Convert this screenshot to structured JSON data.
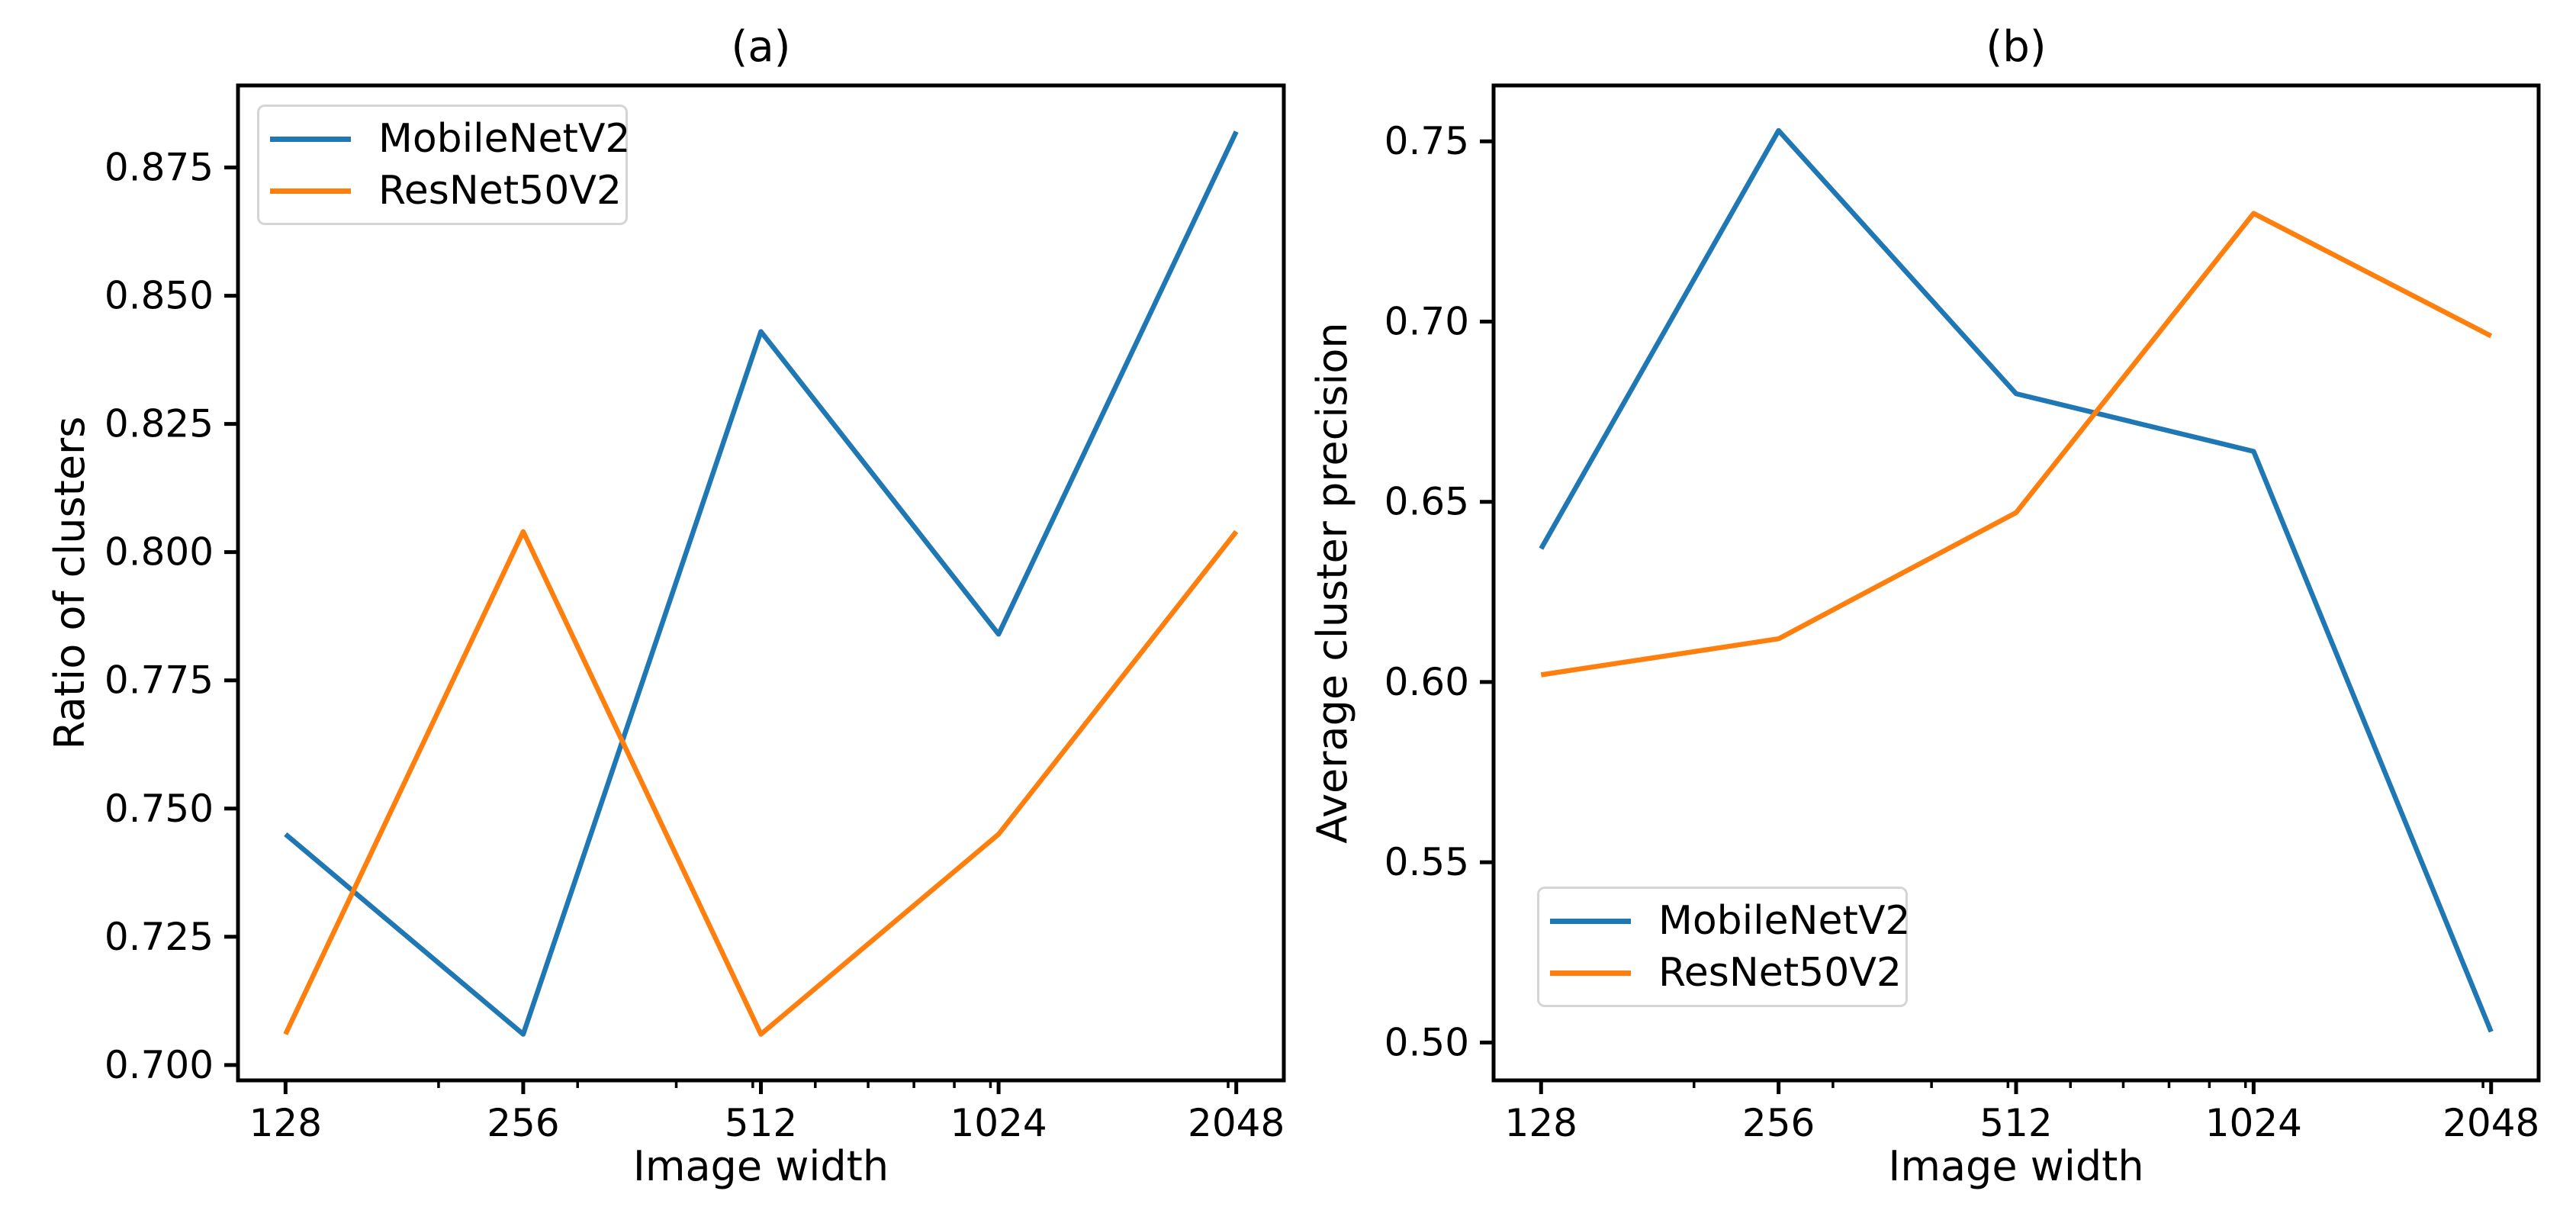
{
  "figure": {
    "background_color": "#ffffff",
    "text_color": "#000000"
  },
  "chart_data": [
    {
      "type": "line",
      "id": "a",
      "title": "(a)",
      "xlabel": "Image width",
      "ylabel": "Ratio of clusters",
      "x_scale": "log2",
      "x": [
        128,
        256,
        512,
        1024,
        2048
      ],
      "x_tick_labels": [
        "128",
        "256",
        "512",
        "1024",
        "2048"
      ],
      "xticks_minor": [
        200,
        300,
        400,
        500,
        600,
        700,
        800,
        900,
        1000,
        2000
      ],
      "xlim_log2": [
        6.8,
        11.2
      ],
      "ylim": [
        0.697,
        0.891
      ],
      "yticks": [
        0.7,
        0.725,
        0.75,
        0.775,
        0.8,
        0.825,
        0.85,
        0.875
      ],
      "y_tick_labels": [
        "0.700",
        "0.725",
        "0.750",
        "0.775",
        "0.800",
        "0.825",
        "0.850",
        "0.875"
      ],
      "grid": false,
      "legend_position": "upper left",
      "series": [
        {
          "name": "MobileNetV2",
          "color": "#1f77b4",
          "values": [
            0.745,
            0.706,
            0.843,
            0.784,
            0.882
          ]
        },
        {
          "name": "ResNet50V2",
          "color": "#ff7f0e",
          "values": [
            0.706,
            0.804,
            0.706,
            0.745,
            0.804
          ]
        }
      ]
    },
    {
      "type": "line",
      "id": "b",
      "title": "(b)",
      "xlabel": "Image width",
      "ylabel": "Average cluster precision",
      "x_scale": "log2",
      "x": [
        128,
        256,
        512,
        1024,
        2048
      ],
      "x_tick_labels": [
        "128",
        "256",
        "512",
        "1024",
        "2048"
      ],
      "xticks_minor": [
        200,
        300,
        400,
        500,
        600,
        700,
        800,
        900,
        1000,
        2000
      ],
      "xlim_log2": [
        6.8,
        11.2
      ],
      "ylim": [
        0.4895,
        0.7655
      ],
      "yticks": [
        0.5,
        0.55,
        0.6,
        0.65,
        0.7,
        0.75
      ],
      "y_tick_labels": [
        "0.50",
        "0.55",
        "0.60",
        "0.65",
        "0.70",
        "0.75"
      ],
      "grid": false,
      "legend_position": "lower left",
      "series": [
        {
          "name": "MobileNetV2",
          "color": "#1f77b4",
          "values": [
            0.637,
            0.753,
            0.68,
            0.664,
            0.503
          ]
        },
        {
          "name": "ResNet50V2",
          "color": "#ff7f0e",
          "values": [
            0.602,
            0.612,
            0.647,
            0.73,
            0.696
          ]
        }
      ]
    }
  ]
}
